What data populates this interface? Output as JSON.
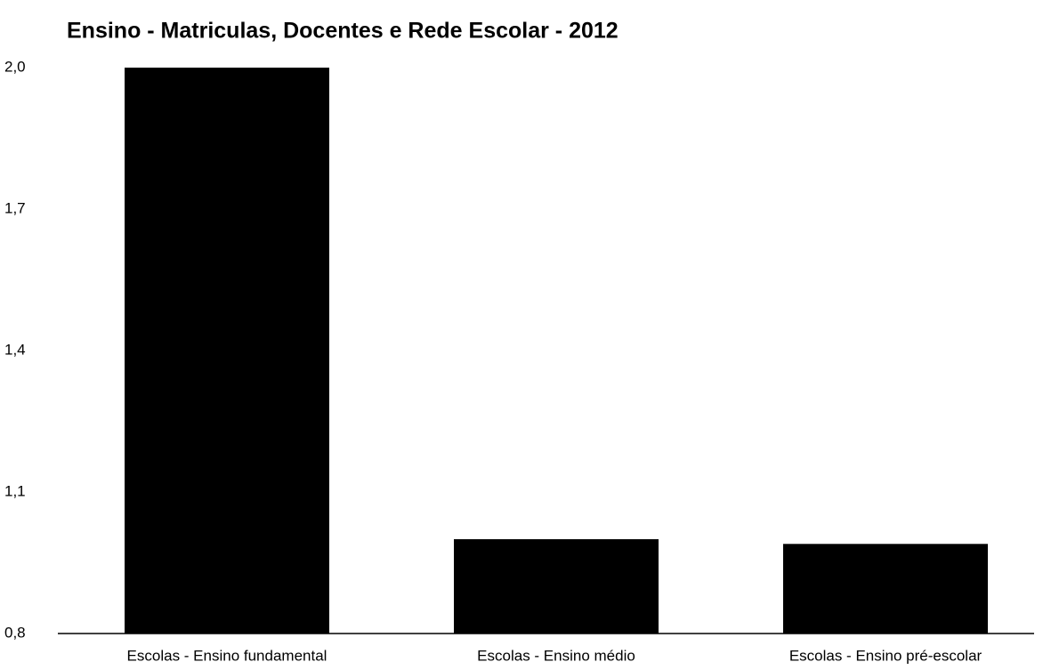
{
  "chart_data": {
    "type": "bar",
    "title": "Ensino - Matriculas, Docentes e Rede Escolar - 2012",
    "categories": [
      "Escolas - Ensino fundamental",
      "Escolas - Ensino médio",
      "Escolas - Ensino pré-escolar"
    ],
    "values": [
      2.0,
      1.0,
      0.99
    ],
    "color": "#000000",
    "ylim": [
      0.8,
      2.0
    ],
    "yticks": [
      {
        "value": 0.8,
        "label": "0,8"
      },
      {
        "value": 1.1,
        "label": "1,1"
      },
      {
        "value": 1.4,
        "label": "1,4"
      },
      {
        "value": 1.7,
        "label": "1,7"
      },
      {
        "value": 2.0,
        "label": "2,0"
      }
    ],
    "grid": false
  }
}
